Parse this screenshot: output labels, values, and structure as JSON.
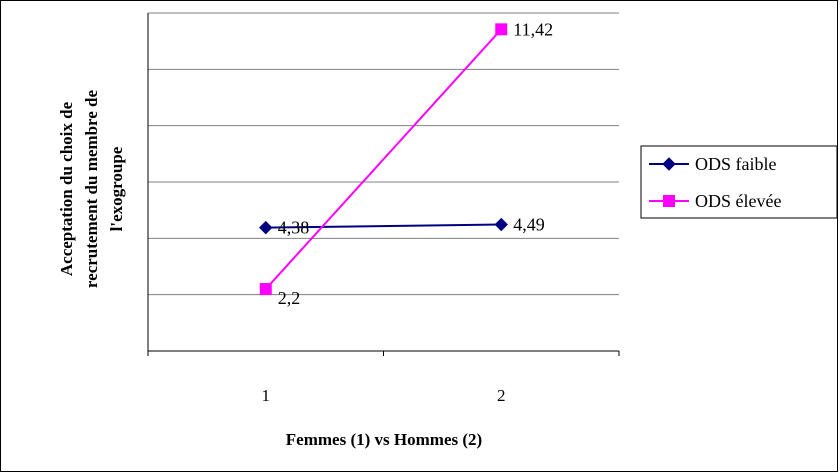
{
  "chart_data": {
    "type": "line",
    "x": [
      1,
      2
    ],
    "x_ticks": [
      "1",
      "2"
    ],
    "xlabel": "Femmes (1) vs Hommes (2)",
    "ylabel_lines": [
      "Acceptation du choix de",
      "recrutement du membre de",
      "l'exogroupe"
    ],
    "ylim": [
      0,
      12
    ],
    "y_gridlines": [
      2,
      4,
      6,
      8,
      10,
      12
    ],
    "grid": true,
    "y_tick_labels_shown": false,
    "legend_position": "right",
    "series": [
      {
        "name": "ODS faible",
        "values": [
          4.38,
          4.49
        ],
        "labels": [
          "4,38",
          "4,49"
        ],
        "color": "#000080",
        "marker": "diamond"
      },
      {
        "name": "ODS élevée",
        "values": [
          2.2,
          11.42
        ],
        "labels": [
          "2,2",
          "11,42"
        ],
        "color": "#FF00FF",
        "marker": "square"
      }
    ]
  }
}
